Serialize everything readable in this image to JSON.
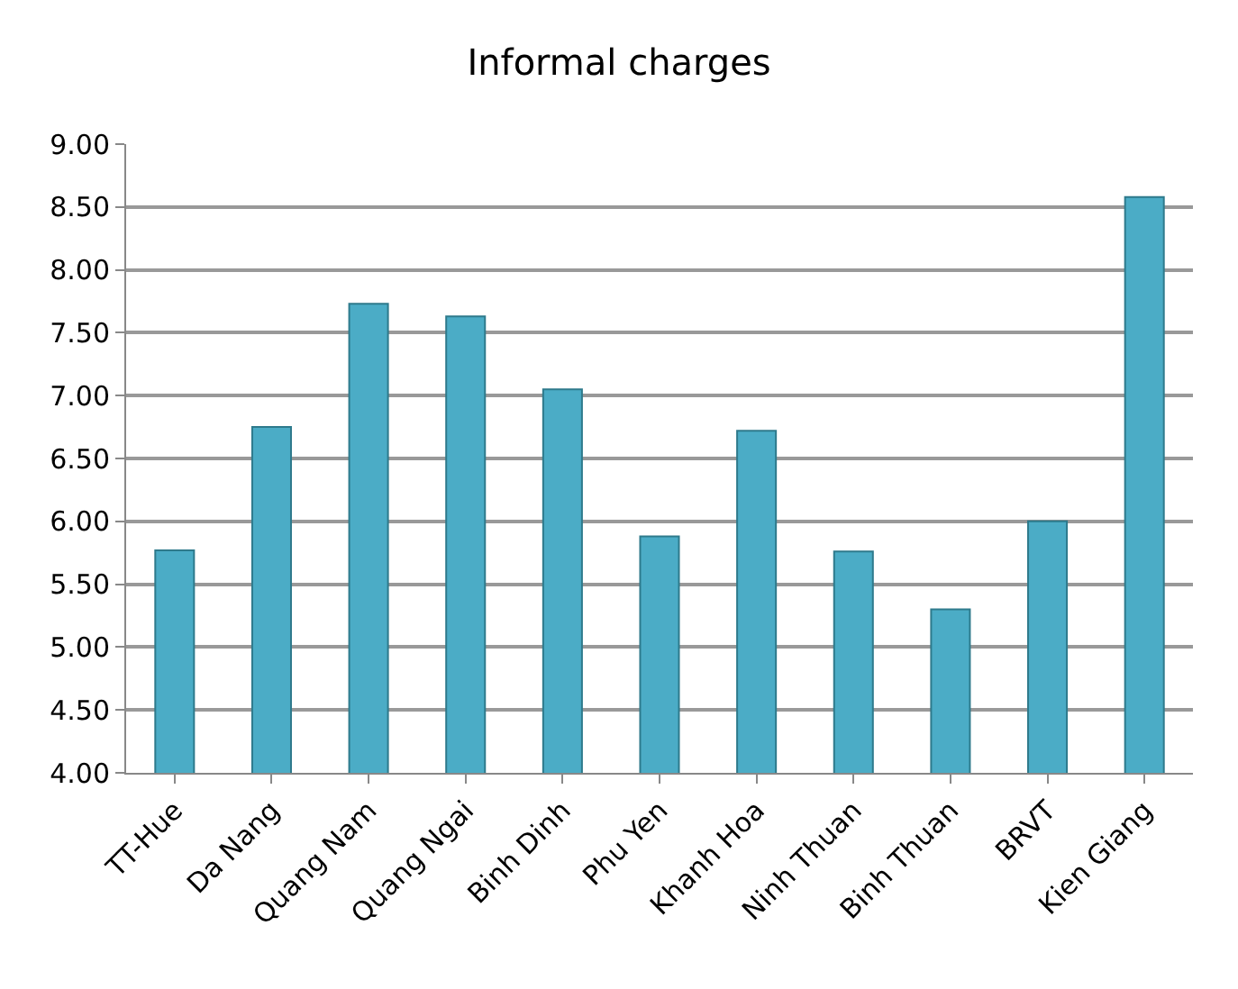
{
  "chart_data": {
    "type": "bar",
    "title": "Informal charges",
    "categories": [
      "TT-Hue",
      "Da Nang",
      "Quang Nam",
      "Quang Ngai",
      "Binh Dinh",
      "Phu Yen",
      "Khanh Hoa",
      "Ninh Thuan",
      "Binh Thuan",
      "BRVT",
      "Kien Giang"
    ],
    "values": [
      5.77,
      6.75,
      7.73,
      7.63,
      7.05,
      5.88,
      6.72,
      5.76,
      5.3,
      6.0,
      8.58
    ],
    "color": "#4bacc6",
    "ylim": [
      4,
      9
    ],
    "yticks": [
      {
        "value": 4,
        "label": "4.00"
      },
      {
        "value": 4.5,
        "label": "4.50"
      },
      {
        "value": 5,
        "label": "5.00"
      },
      {
        "value": 5.5,
        "label": "5.50"
      },
      {
        "value": 6,
        "label": "6.00"
      },
      {
        "value": 6.5,
        "label": "6.50"
      },
      {
        "value": 7,
        "label": "7.00"
      },
      {
        "value": 7.5,
        "label": "7.50"
      },
      {
        "value": 8,
        "label": "8.00"
      },
      {
        "value": 8.5,
        "label": "8.50"
      },
      {
        "value": 9,
        "label": "9.00"
      }
    ],
    "grid": "y"
  }
}
